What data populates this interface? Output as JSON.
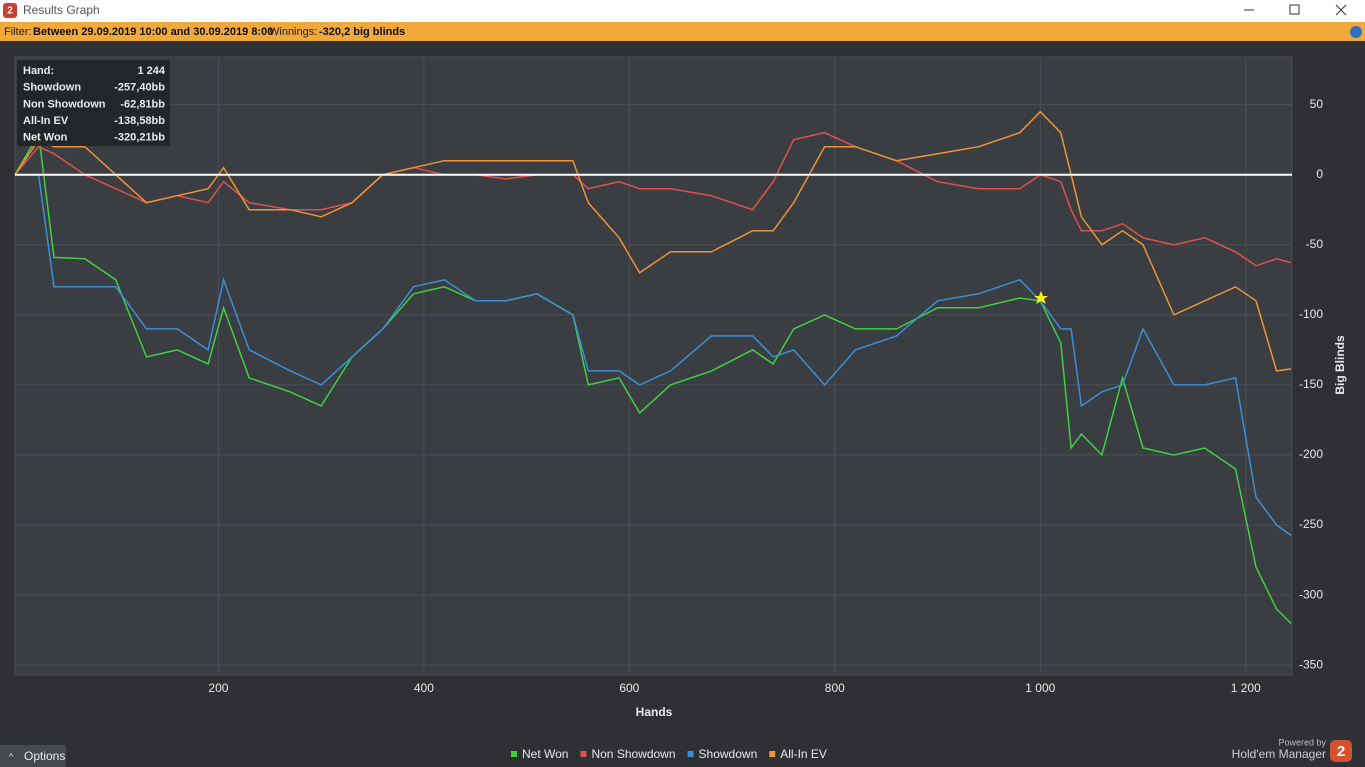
{
  "window": {
    "title": "Results Graph",
    "logo": "2"
  },
  "filter": {
    "label": "Filter:",
    "range": "Between 29.09.2019 10:00 and 30.09.2019 8:00",
    "winnings_label": "Winnings:",
    "winnings": "-320,2 big blinds"
  },
  "tooltip": {
    "rows": [
      [
        "Hand:",
        "1 244"
      ],
      [
        "Showdown",
        "-257,40bb"
      ],
      [
        "Non Showdown",
        "-62,81bb"
      ],
      [
        "All-In EV",
        "-138,58bb"
      ],
      [
        "Net Won",
        "-320,21bb"
      ]
    ]
  },
  "footer": {
    "options": "Options",
    "powered_by": "Powered by",
    "brand": "Hold'em Manager",
    "logo": "2"
  },
  "chart_data": {
    "type": "line",
    "x_label": "Hands",
    "y_label": "Big Blinds",
    "x": [
      2,
      25,
      40,
      70,
      100,
      130,
      160,
      190,
      205,
      230,
      270,
      300,
      330,
      360,
      390,
      420,
      450,
      480,
      510,
      545,
      560,
      590,
      610,
      640,
      680,
      720,
      740,
      760,
      790,
      820,
      860,
      900,
      940,
      980,
      1000,
      1020,
      1030,
      1040,
      1060,
      1080,
      1100,
      1130,
      1160,
      1190,
      1210,
      1230,
      1244
    ],
    "series": [
      {
        "name": "Net Won",
        "color": "#3fd03f",
        "values": [
          0,
          29,
          -59,
          -60,
          -75,
          -130,
          -125,
          -135,
          -95,
          -145,
          -155,
          -165,
          -130,
          -110,
          -85,
          -80,
          -90,
          -90,
          -85,
          -100,
          -150,
          -145,
          -170,
          -150,
          -140,
          -125,
          -135,
          -110,
          -100,
          -110,
          -110,
          -95,
          -95,
          -88,
          -90,
          -120,
          -195,
          -185,
          -200,
          -145,
          -195,
          -200,
          -195,
          -210,
          -280,
          -310,
          -320.21
        ]
      },
      {
        "name": "Non Showdown",
        "color": "#e0504e",
        "values": [
          0,
          20,
          15,
          0,
          -10,
          -20,
          -15,
          -20,
          -5,
          -20,
          -25,
          -25,
          -20,
          0,
          5,
          0,
          0,
          -3,
          0,
          0,
          -10,
          -5,
          -10,
          -10,
          -15,
          -25,
          -5,
          25,
          30,
          20,
          10,
          -5,
          -10,
          -10,
          0,
          -5,
          -25,
          -40,
          -40,
          -35,
          -45,
          -50,
          -45,
          -55,
          -65,
          -60,
          -62.81
        ]
      },
      {
        "name": "Showdown",
        "color": "#3a8fd6",
        "values": [
          0,
          0,
          -80,
          -80,
          -80,
          -110,
          -110,
          -125,
          -75,
          -125,
          -140,
          -150,
          -130,
          -110,
          -80,
          -75,
          -90,
          -90,
          -85,
          -100,
          -140,
          -140,
          -150,
          -140,
          -115,
          -115,
          -130,
          -125,
          -150,
          -125,
          -115,
          -90,
          -85,
          -75,
          -90,
          -110,
          -110,
          -165,
          -155,
          -150,
          -110,
          -150,
          -150,
          -145,
          -230,
          -250,
          -257.4
        ]
      },
      {
        "name": "All-In EV",
        "color": "#ec9436",
        "values": [
          0,
          25,
          20,
          20,
          0,
          -20,
          -15,
          -10,
          5,
          -25,
          -25,
          -30,
          -20,
          0,
          5,
          10,
          10,
          10,
          10,
          10,
          -20,
          -45,
          -70,
          -55,
          -55,
          -40,
          -40,
          -20,
          20,
          20,
          10,
          15,
          20,
          30,
          45,
          30,
          0,
          -30,
          -50,
          -40,
          -50,
          -100,
          -90,
          -80,
          -90,
          -140,
          -138.58
        ]
      }
    ],
    "xlim": [
      2,
      1245
    ],
    "xticks": [
      200,
      400,
      600,
      800,
      {
        "value": 1000,
        "label": "1 000"
      },
      {
        "value": 1200,
        "label": "1 200"
      }
    ],
    "ylim": [
      -357,
      84
    ],
    "yticks": [
      50,
      0,
      -50,
      -100,
      -150,
      -200,
      -250,
      -300,
      -350
    ],
    "grid": true,
    "zero_line": true,
    "legend": "bottom"
  }
}
